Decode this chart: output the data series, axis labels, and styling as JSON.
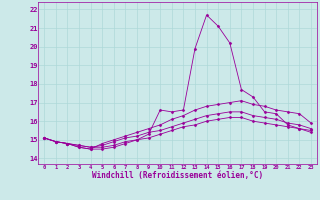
{
  "background_color": "#cce9e9",
  "line_color": "#990099",
  "xlabel": "Windchill (Refroidissement éolien,°C)",
  "xlabel_fontsize": 5.5,
  "ytick_labels": [
    "14",
    "15",
    "16",
    "17",
    "18",
    "19",
    "20",
    "21",
    "22"
  ],
  "ytick_vals": [
    14,
    15,
    16,
    17,
    18,
    19,
    20,
    21,
    22
  ],
  "xtick_vals": [
    0,
    1,
    2,
    3,
    4,
    5,
    6,
    7,
    8,
    9,
    10,
    11,
    12,
    13,
    14,
    15,
    16,
    17,
    18,
    19,
    20,
    21,
    22,
    23
  ],
  "ylim": [
    13.7,
    22.4
  ],
  "xlim": [
    -0.5,
    23.5
  ],
  "grid_color": "#aed8d8",
  "series": [
    [
      15.1,
      14.9,
      14.8,
      14.6,
      14.5,
      14.8,
      15.0,
      15.2,
      15.4,
      15.6,
      15.8,
      16.1,
      16.3,
      16.6,
      16.8,
      16.9,
      17.0,
      17.1,
      16.9,
      16.8,
      16.6,
      16.5,
      16.4,
      15.9
    ],
    [
      15.1,
      14.9,
      14.8,
      14.7,
      14.6,
      14.7,
      14.9,
      15.1,
      15.2,
      15.4,
      15.5,
      15.7,
      15.9,
      16.1,
      16.3,
      16.4,
      16.5,
      16.5,
      16.3,
      16.2,
      16.1,
      15.9,
      15.8,
      15.6
    ],
    [
      15.1,
      14.9,
      14.8,
      14.7,
      14.6,
      14.6,
      14.7,
      14.9,
      15.0,
      15.1,
      15.3,
      15.5,
      15.7,
      15.8,
      16.0,
      16.1,
      16.2,
      16.2,
      16.0,
      15.9,
      15.8,
      15.7,
      15.6,
      15.5
    ],
    [
      15.1,
      14.9,
      14.8,
      14.6,
      14.5,
      14.5,
      14.6,
      14.8,
      15.0,
      15.3,
      16.6,
      16.5,
      16.6,
      19.9,
      21.7,
      21.1,
      20.2,
      17.7,
      17.3,
      16.5,
      16.4,
      15.8,
      15.6,
      15.4
    ]
  ]
}
